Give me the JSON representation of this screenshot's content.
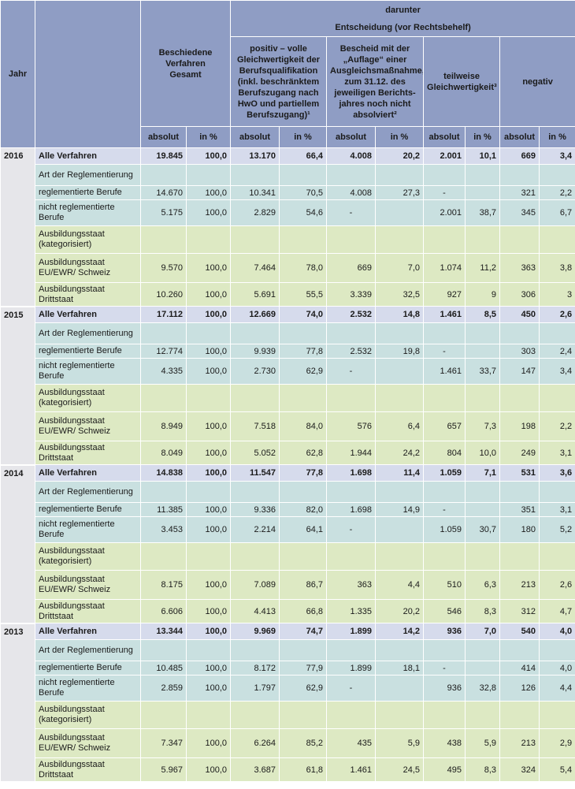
{
  "header": {
    "jahr": "Jahr",
    "gesamt": "Beschiedene Verfahren Gesamt",
    "darunter": "darunter",
    "entscheidung": "Entscheidung (vor Rechtsbehelf)",
    "positiv": "positiv – volle Gleichwertigkeit der Berufsqualifikation (inkl. beschränktem Berufszugang nach HwO und partiellem Berufszugang)¹",
    "auflage": "Bescheid mit der „Auflage“ einer Ausgleichsmaßnahme, zum 31.12. des jeweiligen Berichts­jahres noch nicht absolviert²",
    "teilweise": "teilweise Gleichwertigkeit³",
    "negativ": "negativ",
    "absolut": "absolut",
    "in_pct": "in %"
  },
  "colors": {
    "header": "#8f9dc4",
    "total_row": "#d6dbec",
    "art_rows": "#c9e0e0",
    "ausbildung_rows": "#dde9c3",
    "year_col": "#e6e6ea"
  },
  "years": [
    {
      "year": "2016",
      "rows": [
        {
          "label": "Alle Verfahren",
          "type": "total",
          "h": "total",
          "v": [
            "19.845",
            "100,0",
            "13.170",
            "66,4",
            "4.008",
            "20,2",
            "2.001",
            "10,1",
            "669",
            "3,4"
          ]
        },
        {
          "label": "Art der Reglementierung",
          "type": "art",
          "h": "art",
          "v": [
            "",
            "",
            "",
            "",
            "",
            "",
            "",
            "",
            "",
            ""
          ]
        },
        {
          "label": "reglementierte Berufe",
          "type": "art",
          "h": "regl",
          "v": [
            "14.670",
            "100,0",
            "10.341",
            "70,5",
            "4.008",
            "27,3",
            "-",
            "",
            "321",
            "2,2"
          ]
        },
        {
          "label": "nicht reglementierte Berufe",
          "type": "art",
          "h": "nicht",
          "v": [
            "5.175",
            "100,0",
            "2.829",
            "54,6",
            "-",
            "",
            "2.001",
            "38,7",
            "345",
            "6,7"
          ]
        },
        {
          "label": "Ausbildungsstaat (kategorisiert)",
          "type": "ausb",
          "h": "kat",
          "v": [
            "",
            "",
            "",
            "",
            "",
            "",
            "",
            "",
            "",
            ""
          ]
        },
        {
          "label": "Ausbildungsstaat EU/EWR/ Schweiz",
          "type": "ausb",
          "h": "eu",
          "v": [
            "9.570",
            "100,0",
            "7.464",
            "78,0",
            "669",
            "7,0",
            "1.074",
            "11,2",
            "363",
            "3,8"
          ]
        },
        {
          "label": "Ausbildungsstaat Drittstaat",
          "type": "ausb",
          "h": "dritt",
          "v": [
            "10.260",
            "100,0",
            "5.691",
            "55,5",
            "3.339",
            "32,5",
            "927",
            "9",
            "306",
            "3"
          ]
        }
      ]
    },
    {
      "year": "2015",
      "rows": [
        {
          "label": "Alle Verfahren",
          "type": "total",
          "h": "total",
          "v": [
            "17.112",
            "100,0",
            "12.669",
            "74,0",
            "2.532",
            "14,8",
            "1.461",
            "8,5",
            "450",
            "2,6"
          ]
        },
        {
          "label": "Art der Reglementierung",
          "type": "art",
          "h": "art",
          "v": [
            "",
            "",
            "",
            "",
            "",
            "",
            "",
            "",
            "",
            ""
          ]
        },
        {
          "label": "reglementierte Berufe",
          "type": "art",
          "h": "regl",
          "v": [
            "12.774",
            "100,0",
            "9.939",
            "77,8",
            "2.532",
            "19,8",
            "-",
            "",
            "303",
            "2,4"
          ]
        },
        {
          "label": "nicht reglementierte Berufe",
          "type": "art",
          "h": "nicht",
          "v": [
            "4.335",
            "100,0",
            "2.730",
            "62,9",
            "-",
            "",
            "1.461",
            "33,7",
            "147",
            "3,4"
          ]
        },
        {
          "label": "Ausbildungsstaat (kategorisiert)",
          "type": "ausb",
          "h": "kat",
          "v": [
            "",
            "",
            "",
            "",
            "",
            "",
            "",
            "",
            "",
            ""
          ]
        },
        {
          "label": "Ausbildungsstaat EU/EWR/ Schweiz",
          "type": "ausb",
          "h": "eu",
          "v": [
            "8.949",
            "100,0",
            "7.518",
            "84,0",
            "576",
            "6,4",
            "657",
            "7,3",
            "198",
            "2,2"
          ]
        },
        {
          "label": "Ausbildungsstaat Drittstaat",
          "type": "ausb",
          "h": "dritt",
          "v": [
            "8.049",
            "100,0",
            "5.052",
            "62,8",
            "1.944",
            "24,2",
            "804",
            "10,0",
            "249",
            "3,1"
          ]
        }
      ]
    },
    {
      "year": "2014",
      "rows": [
        {
          "label": "Alle Verfahren",
          "type": "total",
          "h": "total",
          "v": [
            "14.838",
            "100,0",
            "11.547",
            "77,8",
            "1.698",
            "11,4",
            "1.059",
            "7,1",
            "531",
            "3,6"
          ]
        },
        {
          "label": "Art der Reglementierung",
          "type": "art",
          "h": "art",
          "v": [
            "",
            "",
            "",
            "",
            "",
            "",
            "",
            "",
            "",
            ""
          ]
        },
        {
          "label": "reglementierte Berufe",
          "type": "art",
          "h": "regl",
          "v": [
            "11.385",
            "100,0",
            "9.336",
            "82,0",
            "1.698",
            "14,9",
            "-",
            "",
            "351",
            "3,1"
          ]
        },
        {
          "label": "nicht reglementierte Berufe",
          "type": "art",
          "h": "nicht",
          "v": [
            "3.453",
            "100,0",
            "2.214",
            "64,1",
            "-",
            "",
            "1.059",
            "30,7",
            "180",
            "5,2"
          ]
        },
        {
          "label": "Ausbildungsstaat (kategorisiert)",
          "type": "ausb",
          "h": "kat",
          "v": [
            "",
            "",
            "",
            "",
            "",
            "",
            "",
            "",
            "",
            ""
          ]
        },
        {
          "label": "Ausbildungsstaat EU/EWR/ Schweiz",
          "type": "ausb",
          "h": "eu",
          "v": [
            "8.175",
            "100,0",
            "7.089",
            "86,7",
            "363",
            "4,4",
            "510",
            "6,3",
            "213",
            "2,6"
          ]
        },
        {
          "label": "Ausbildungsstaat Drittstaat",
          "type": "ausb",
          "h": "dritt",
          "v": [
            "6.606",
            "100,0",
            "4.413",
            "66,8",
            "1.335",
            "20,2",
            "546",
            "8,3",
            "312",
            "4,7"
          ]
        }
      ]
    },
    {
      "year": "2013",
      "rows": [
        {
          "label": "Alle Verfahren",
          "type": "total",
          "h": "total",
          "v": [
            "13.344",
            "100,0",
            "9.969",
            "74,7",
            "1.899",
            "14,2",
            "936",
            "7,0",
            "540",
            "4,0"
          ]
        },
        {
          "label": "Art der Reglementierung",
          "type": "art",
          "h": "art",
          "v": [
            "",
            "",
            "",
            "",
            "",
            "",
            "",
            "",
            "",
            ""
          ]
        },
        {
          "label": "reglementierte Berufe",
          "type": "art",
          "h": "regl",
          "v": [
            "10.485",
            "100,0",
            "8.172",
            "77,9",
            "1.899",
            "18,1",
            "-",
            "",
            "414",
            "4,0"
          ]
        },
        {
          "label": "nicht reglementierte Berufe",
          "type": "art",
          "h": "nicht",
          "v": [
            "2.859",
            "100,0",
            "1.797",
            "62,9",
            "-",
            "",
            "936",
            "32,8",
            "126",
            "4,4"
          ]
        },
        {
          "label": "Ausbildungsstaat (kategorisiert)",
          "type": "ausb",
          "h": "kat",
          "v": [
            "",
            "",
            "",
            "",
            "",
            "",
            "",
            "",
            "",
            ""
          ]
        },
        {
          "label": "Ausbildungsstaat EU/EWR/ Schweiz",
          "type": "ausb",
          "h": "eu",
          "v": [
            "7.347",
            "100,0",
            "6.264",
            "85,2",
            "435",
            "5,9",
            "438",
            "5,9",
            "213",
            "2,9"
          ]
        },
        {
          "label": "Ausbildungsstaat Drittstaat",
          "type": "ausb",
          "h": "dritt",
          "v": [
            "5.967",
            "100,0",
            "3.687",
            "61,8",
            "1.461",
            "24,5",
            "495",
            "8,3",
            "324",
            "5,4"
          ]
        }
      ]
    }
  ]
}
